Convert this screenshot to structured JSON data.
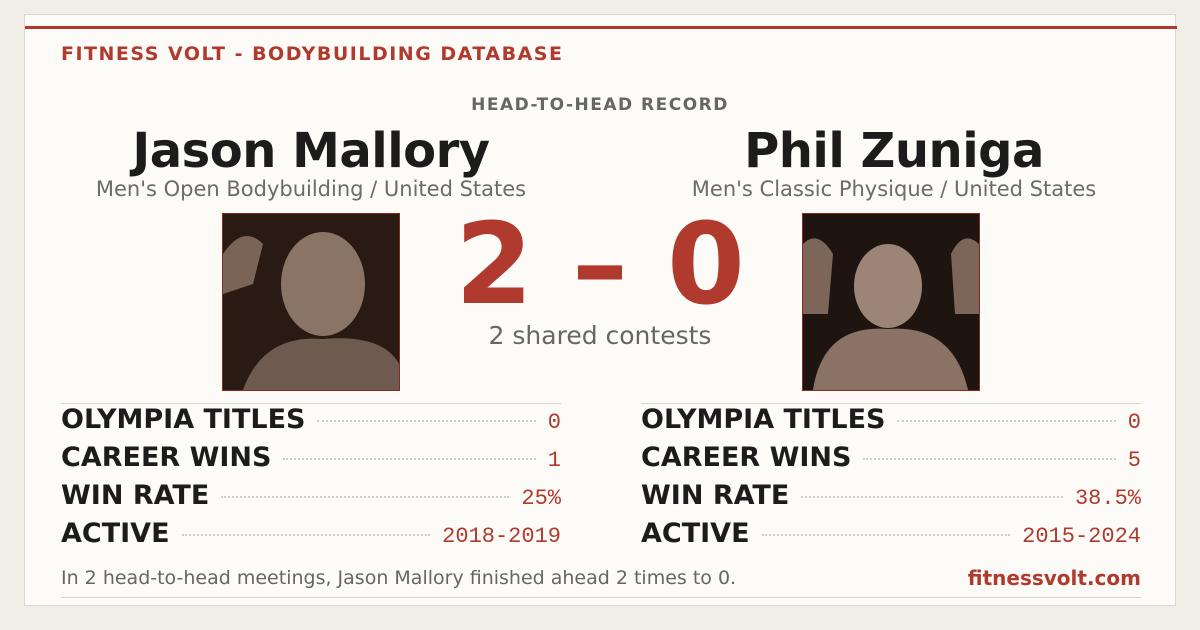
{
  "header": {
    "brand": "FITNESS VOLT - BODYBUILDING DATABASE",
    "subtitle": "HEAD-TO-HEAD RECORD"
  },
  "athletes": [
    {
      "name": "Jason Mallory",
      "division": "Men's Open Bodybuilding / United States",
      "stats": [
        {
          "label": "OLYMPIA TITLES",
          "value": "0"
        },
        {
          "label": "CAREER WINS",
          "value": "1"
        },
        {
          "label": "WIN RATE",
          "value": "25%"
        },
        {
          "label": "ACTIVE",
          "value": "2018-2019"
        }
      ]
    },
    {
      "name": "Phil Zuniga",
      "division": "Men's Classic Physique / United States",
      "stats": [
        {
          "label": "OLYMPIA TITLES",
          "value": "0"
        },
        {
          "label": "CAREER WINS",
          "value": "5"
        },
        {
          "label": "WIN RATE",
          "value": "38.5%"
        },
        {
          "label": "ACTIVE",
          "value": "2015-2024"
        }
      ]
    }
  ],
  "score": {
    "left": 2,
    "separator": "–",
    "right": 0,
    "caption": "2 shared contests"
  },
  "footer": {
    "summary": "In 2 head-to-head meetings, Jason Mallory finished ahead 2 times to 0.",
    "site": "fitnessvolt.com"
  }
}
